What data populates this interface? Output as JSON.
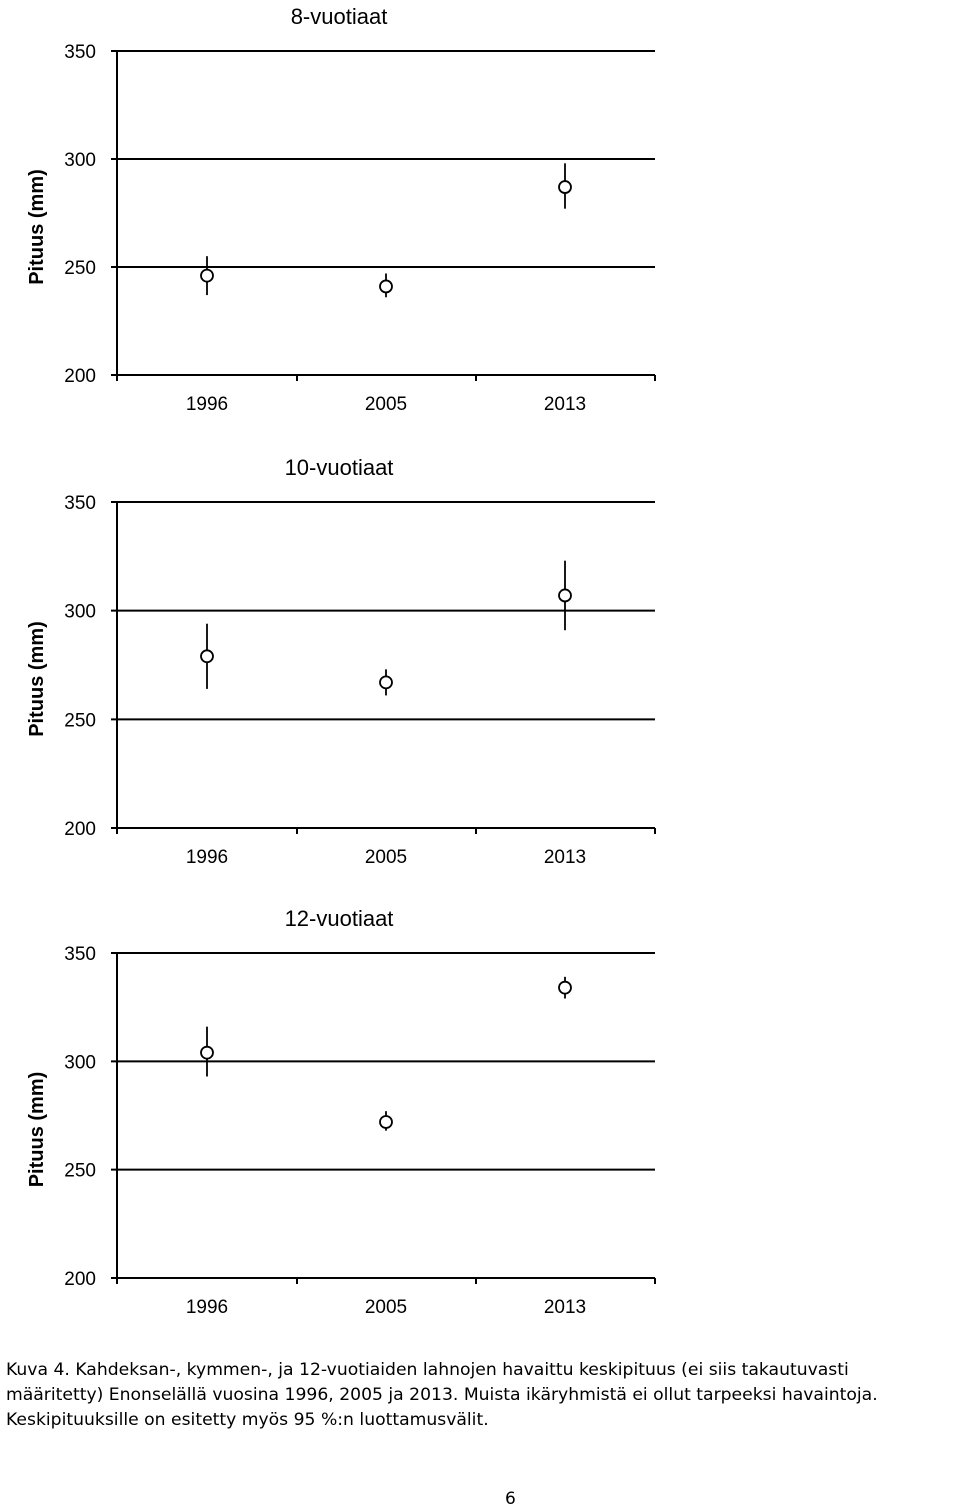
{
  "chart_data": [
    {
      "type": "scatter",
      "title": "8-vuotiaat",
      "ylabel": "Pituus (mm)",
      "ylim": [
        200,
        350
      ],
      "yticks": [
        200,
        250,
        300,
        350
      ],
      "categories": [
        "1996",
        "2005",
        "2013"
      ],
      "series": [
        {
          "values": [
            246,
            241,
            287
          ],
          "lower": [
            237,
            236,
            277
          ],
          "upper": [
            255,
            247,
            298
          ]
        }
      ],
      "grid": true
    },
    {
      "type": "scatter",
      "title": "10-vuotiaat",
      "ylabel": "Pituus (mm)",
      "ylim": [
        200,
        350
      ],
      "yticks": [
        200,
        250,
        300,
        350
      ],
      "categories": [
        "1996",
        "2005",
        "2013"
      ],
      "series": [
        {
          "values": [
            279,
            267,
            307
          ],
          "lower": [
            264,
            261,
            291
          ],
          "upper": [
            294,
            273,
            323
          ]
        }
      ],
      "grid": true
    },
    {
      "type": "scatter",
      "title": "12-vuotiaat",
      "ylabel": "Pituus (mm)",
      "ylim": [
        200,
        350
      ],
      "yticks": [
        200,
        250,
        300,
        350
      ],
      "categories": [
        "1996",
        "2005",
        "2013"
      ],
      "series": [
        {
          "values": [
            304,
            272,
            334
          ],
          "lower": [
            293,
            268,
            329
          ],
          "upper": [
            316,
            277,
            339
          ]
        }
      ],
      "grid": true
    }
  ],
  "caption": {
    "lines": [
      "Kuva 4. Kahdeksan-, kymmen-, ja 12-vuotiaiden lahnojen havaittu keskipituus (ei siis takautuvasti",
      "määritetty) Enonselällä vuosina 1996, 2005 ja 2013. Muista ikäryhmistä ei ollut tarpeeksi havaintoja.",
      "Keskipituuksille on esitetty myös 95 %:n luottamusvälit."
    ]
  },
  "page_number": "6"
}
